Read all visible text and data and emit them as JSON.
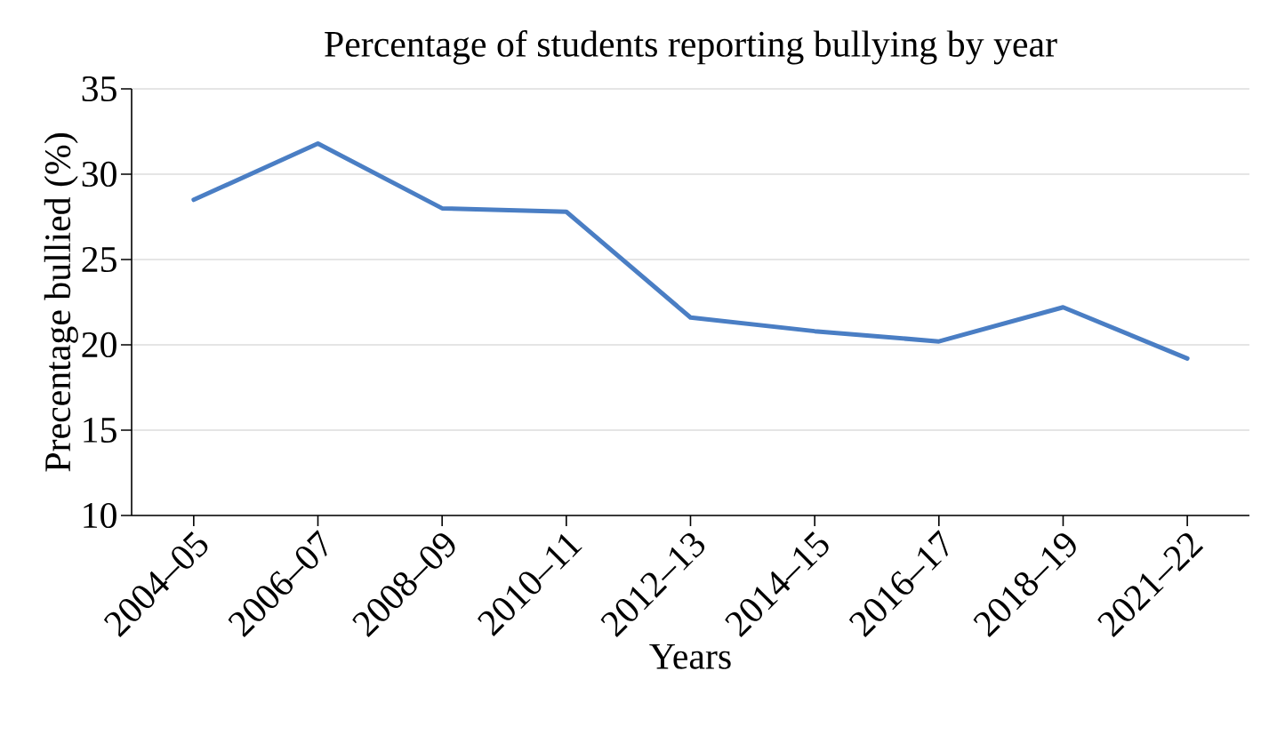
{
  "chart_data": {
    "type": "line",
    "title": "Percentage of students reporting bullying by year",
    "xlabel": "Years",
    "ylabel": "Precentage bullied (%)",
    "categories": [
      "2004–05",
      "2006–07",
      "2008–09",
      "2010–11",
      "2012–13",
      "2014–15",
      "2016–17",
      "2018–19",
      "2021–22"
    ],
    "series": [
      {
        "color": "#4a7ec4",
        "values": [
          28.5,
          31.8,
          28.0,
          27.8,
          21.6,
          20.8,
          20.2,
          22.2,
          19.2
        ]
      }
    ],
    "ylim": [
      10,
      35
    ],
    "yticks": [
      10,
      15,
      20,
      25,
      30,
      35
    ],
    "grid": "y",
    "line_style": "solid"
  }
}
